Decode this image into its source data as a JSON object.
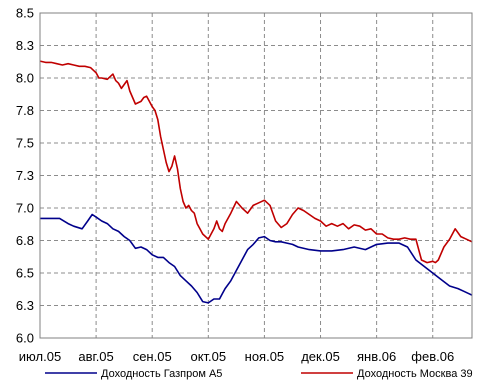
{
  "chart_data": {
    "type": "line",
    "title": "",
    "xlabel": "",
    "ylabel": "",
    "ylim": [
      6.0,
      8.5
    ],
    "yticks": [
      "6.0",
      "6.3",
      "6.5",
      "6.8",
      "7.0",
      "7.3",
      "7.5",
      "7.8",
      "8.0",
      "8.3",
      "8.5"
    ],
    "ytick_values": [
      6.0,
      6.25,
      6.5,
      6.75,
      7.0,
      7.25,
      7.5,
      7.75,
      8.0,
      8.25,
      8.5
    ],
    "x_categories": [
      "июл.05",
      "авг.05",
      "сен.05",
      "окт.05",
      "ноя.05",
      "дек.05",
      "янв.06",
      "фев.06"
    ],
    "x_range_months": [
      0,
      7.7
    ],
    "grid": true,
    "legend_position": "bottom",
    "series": [
      {
        "name": "Доходность Газпром А5",
        "color": "#00008b",
        "x": [
          0.0,
          0.2,
          0.35,
          0.5,
          0.6,
          0.75,
          0.85,
          0.93,
          1.0,
          1.1,
          1.2,
          1.3,
          1.4,
          1.5,
          1.6,
          1.7,
          1.8,
          1.9,
          2.0,
          2.1,
          2.2,
          2.3,
          2.4,
          2.5,
          2.6,
          2.7,
          2.8,
          2.9,
          3.0,
          3.1,
          3.2,
          3.25,
          3.3,
          3.4,
          3.5,
          3.6,
          3.7,
          3.8,
          3.9,
          4.0,
          4.1,
          4.2,
          4.3,
          4.4,
          4.5,
          4.6,
          4.8,
          5.0,
          5.2,
          5.4,
          5.6,
          5.8,
          6.0,
          6.2,
          6.4,
          6.55,
          6.7,
          6.85,
          7.0,
          7.15,
          7.3,
          7.45,
          7.55,
          7.65,
          7.7
        ],
        "values": [
          6.92,
          6.92,
          6.92,
          6.88,
          6.86,
          6.84,
          6.9,
          6.95,
          6.93,
          6.9,
          6.88,
          6.84,
          6.82,
          6.78,
          6.75,
          6.69,
          6.7,
          6.68,
          6.64,
          6.62,
          6.62,
          6.58,
          6.55,
          6.48,
          6.44,
          6.4,
          6.35,
          6.28,
          6.27,
          6.3,
          6.3,
          6.34,
          6.38,
          6.44,
          6.52,
          6.6,
          6.68,
          6.72,
          6.77,
          6.78,
          6.75,
          6.74,
          6.74,
          6.73,
          6.72,
          6.7,
          6.68,
          6.67,
          6.67,
          6.68,
          6.7,
          6.68,
          6.72,
          6.73,
          6.73,
          6.7,
          6.6,
          6.55,
          6.5,
          6.45,
          6.4,
          6.38,
          6.36,
          6.34,
          6.33
        ]
      },
      {
        "name": "Доходность Москва 39",
        "color": "#c00000",
        "x": [
          0.0,
          0.1,
          0.2,
          0.3,
          0.4,
          0.5,
          0.6,
          0.7,
          0.8,
          0.9,
          1.0,
          1.05,
          1.1,
          1.2,
          1.3,
          1.35,
          1.4,
          1.45,
          1.5,
          1.55,
          1.6,
          1.7,
          1.8,
          1.85,
          1.9,
          1.95,
          2.0,
          2.05,
          2.1,
          2.15,
          2.2,
          2.25,
          2.3,
          2.35,
          2.4,
          2.45,
          2.5,
          2.55,
          2.6,
          2.65,
          2.7,
          2.75,
          2.8,
          2.85,
          2.9,
          3.0,
          3.1,
          3.15,
          3.2,
          3.25,
          3.3,
          3.4,
          3.5,
          3.6,
          3.7,
          3.8,
          3.9,
          4.0,
          4.1,
          4.2,
          4.3,
          4.4,
          4.5,
          4.6,
          4.7,
          4.8,
          4.9,
          5.0,
          5.1,
          5.2,
          5.3,
          5.4,
          5.5,
          5.6,
          5.7,
          5.8,
          5.9,
          6.0,
          6.1,
          6.2,
          6.3,
          6.4,
          6.5,
          6.6,
          6.7,
          6.8,
          6.9,
          7.0,
          7.05,
          7.1,
          7.2,
          7.3,
          7.4,
          7.5,
          7.6,
          7.7
        ],
        "values": [
          8.13,
          8.12,
          8.12,
          8.11,
          8.1,
          8.11,
          8.1,
          8.09,
          8.09,
          8.08,
          8.04,
          8.0,
          8.0,
          7.99,
          8.03,
          7.98,
          7.96,
          7.92,
          7.95,
          7.98,
          7.9,
          7.8,
          7.82,
          7.85,
          7.86,
          7.82,
          7.78,
          7.75,
          7.68,
          7.55,
          7.45,
          7.35,
          7.28,
          7.32,
          7.4,
          7.3,
          7.15,
          7.05,
          7.0,
          7.02,
          6.98,
          6.96,
          6.88,
          6.84,
          6.8,
          6.76,
          6.84,
          6.9,
          6.84,
          6.82,
          6.88,
          6.96,
          7.05,
          7.0,
          6.96,
          7.02,
          7.04,
          7.06,
          7.02,
          6.9,
          6.85,
          6.88,
          6.95,
          7.0,
          6.98,
          6.95,
          6.92,
          6.9,
          6.86,
          6.88,
          6.86,
          6.88,
          6.84,
          6.87,
          6.86,
          6.83,
          6.84,
          6.8,
          6.8,
          6.77,
          6.76,
          6.76,
          6.77,
          6.76,
          6.76,
          6.6,
          6.58,
          6.59,
          6.58,
          6.6,
          6.7,
          6.76,
          6.84,
          6.78,
          6.76,
          6.74
        ]
      }
    ]
  }
}
